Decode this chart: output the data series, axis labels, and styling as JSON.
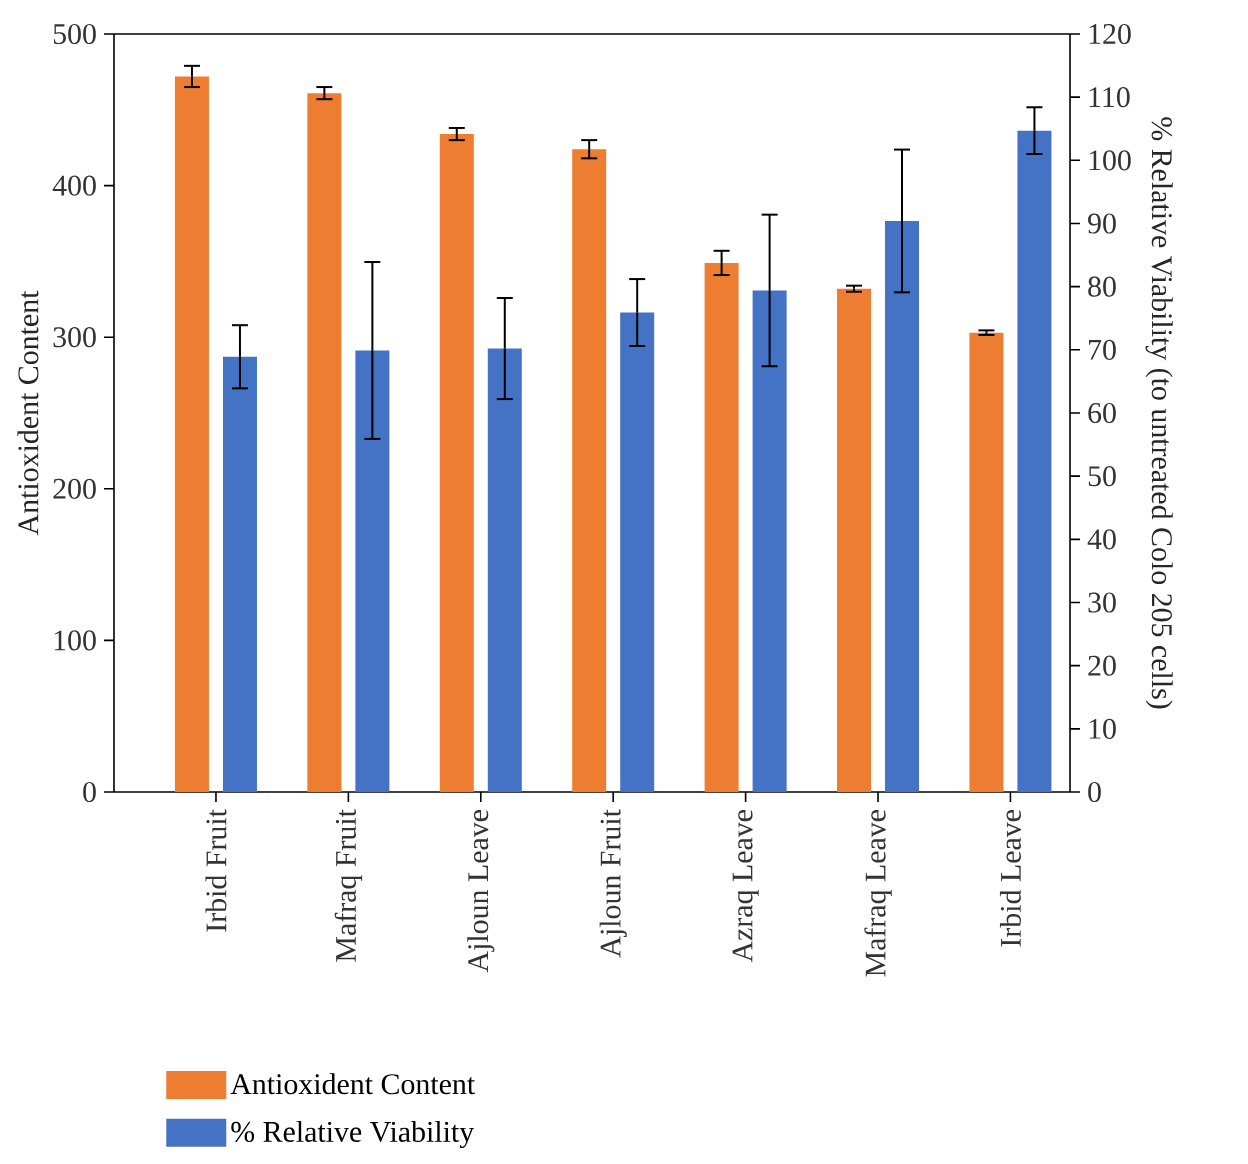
{
  "chart_data": {
    "type": "bar",
    "ylabel": "Antioxident Content",
    "y2label": "% Relative Viability (to untreated Colo 205 cells)",
    "categories": [
      "Irbid Fruit",
      "Mafraq Fruit",
      "Ajloun Leave",
      "Ajloun Fruit",
      "Azraq Leave",
      "Mafraq Leave",
      "Irbid Leave"
    ],
    "series": [
      {
        "name": "Antioxident Content",
        "color": "#ed7d31",
        "values": [
          472,
          461,
          434,
          424,
          349,
          332,
          303
        ],
        "errors": [
          7,
          4,
          4,
          6,
          8,
          2,
          1.5
        ]
      },
      {
        "name": "% Relative Viability",
        "color": "#4472c4",
        "axis": "y2",
        "values": [
          68.9,
          69.9,
          70.2,
          75.9,
          79.4,
          90.4,
          104.7
        ],
        "errors": [
          5,
          14,
          8,
          5.3,
          12,
          11.3,
          3.7
        ]
      }
    ],
    "ylim": [
      0,
      500
    ],
    "yticks": [
      0,
      100,
      200,
      300,
      400,
      500
    ],
    "y2lim": [
      0,
      120
    ],
    "y2ticks": [
      0,
      10,
      20,
      30,
      40,
      50,
      60,
      70,
      80,
      90,
      100,
      110,
      120
    ],
    "legend": "bottom",
    "grid": false
  }
}
